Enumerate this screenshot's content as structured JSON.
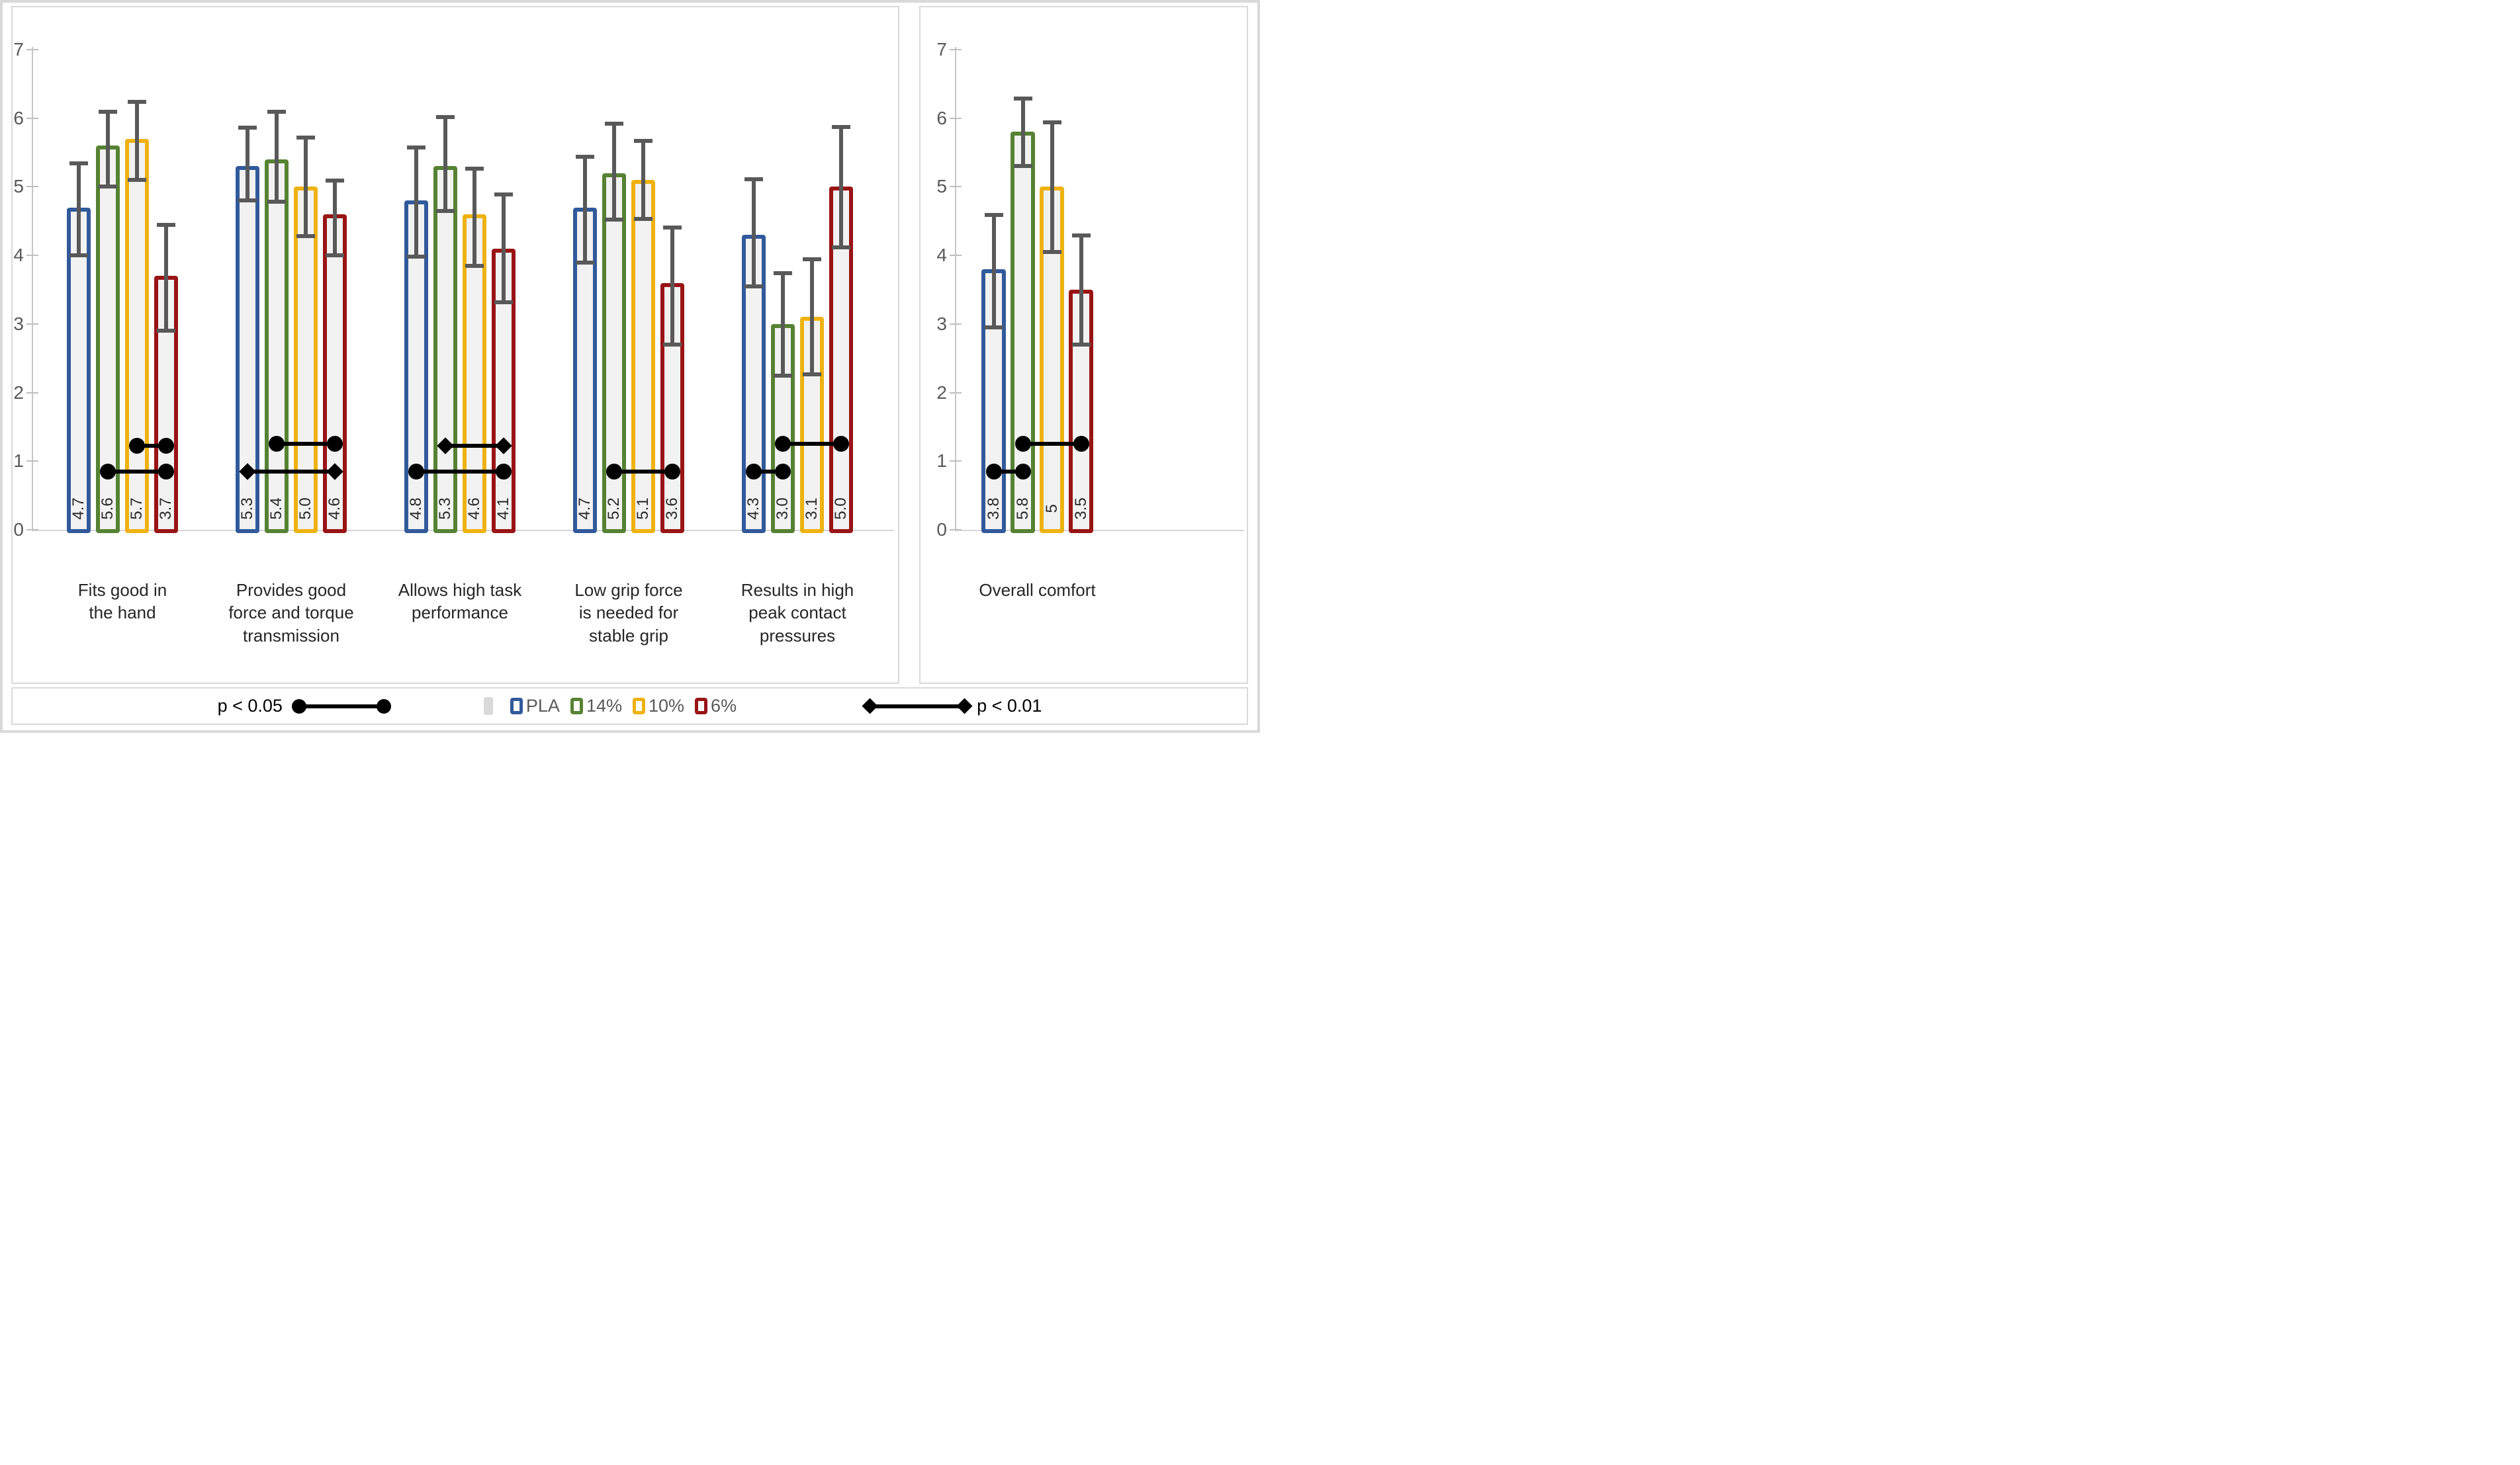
{
  "colors": {
    "bar_fill": "#F2F2F2",
    "error_bar": "#595959",
    "axis": "#BFBFBF",
    "tick_label": "#595959",
    "panel_border": "#D9D9D9",
    "significance": "#000000",
    "pla_blue": "#315A9B",
    "green_14": "#568233",
    "yellow_10": "#EEB211",
    "red_6": "#991415"
  },
  "legend": {
    "p05_label": "p < 0.05",
    "p01_label": "p < 0.01",
    "entries": [
      {
        "label": "PLA",
        "color": "#315A9B"
      },
      {
        "label": "14%",
        "color": "#568233"
      },
      {
        "label": "10%",
        "color": "#EEB211"
      },
      {
        "label": "6%",
        "color": "#991415"
      }
    ]
  },
  "chart_data": [
    {
      "type": "bar",
      "title": "",
      "xlabel": "",
      "ylabel": "",
      "ylim": [
        0,
        7
      ],
      "yticks": [
        0,
        1,
        2,
        3,
        4,
        5,
        6,
        7
      ],
      "grid": false,
      "legend_position": "bottom",
      "categories": [
        "Fits good in\nthe hand",
        "Provides good\nforce and torque\ntransmission",
        "Allows high  task\nperformance",
        "Low grip force\nis needed for\nstable grip",
        "Results in high\npeak contact\npressures"
      ],
      "series": [
        {
          "name": "PLA",
          "color": "#315A9B",
          "values": [
            4.7,
            5.3,
            4.8,
            4.7,
            4.3
          ],
          "ci": [
            [
              4.0,
              5.35
            ],
            [
              4.8,
              5.87
            ],
            [
              3.98,
              5.58
            ],
            [
              3.9,
              5.45
            ],
            [
              3.55,
              5.12
            ]
          ]
        },
        {
          "name": "14%",
          "color": "#568233",
          "values": [
            5.6,
            5.4,
            5.3,
            5.2,
            3.0
          ],
          "ci": [
            [
              5.0,
              6.1
            ],
            [
              4.78,
              6.1
            ],
            [
              4.65,
              6.03
            ],
            [
              4.52,
              5.93
            ],
            [
              2.25,
              3.75
            ]
          ]
        },
        {
          "name": "10%",
          "color": "#EEB211",
          "values": [
            5.7,
            5.0,
            4.6,
            5.1,
            3.1
          ],
          "ci": [
            [
              5.1,
              6.25
            ],
            [
              4.28,
              5.73
            ],
            [
              3.85,
              5.27
            ],
            [
              4.53,
              5.68
            ],
            [
              2.27,
              3.95
            ]
          ]
        },
        {
          "name": "6%",
          "color": "#991415",
          "values": [
            3.7,
            4.6,
            4.1,
            3.6,
            5.0
          ],
          "ci": [
            [
              2.9,
              4.45
            ],
            [
              4.0,
              5.1
            ],
            [
              3.32,
              4.9
            ],
            [
              2.7,
              4.42
            ],
            [
              4.12,
              5.88
            ]
          ]
        }
      ],
      "value_labels": [
        [
          "4.7",
          "5.6",
          "5.7",
          "3.7"
        ],
        [
          "5.3",
          "5.4",
          "5.0",
          "4.6"
        ],
        [
          "4.8",
          "5.3",
          "4.6",
          "4.1"
        ],
        [
          "4.7",
          "5.2",
          "5.1",
          "3.6"
        ],
        [
          "4.3",
          "3.0",
          "3.1",
          "5.0"
        ]
      ],
      "significance": [
        {
          "category": 0,
          "y": 1.22,
          "from": 2,
          "to": 3,
          "ends": "dot"
        },
        {
          "category": 0,
          "y": 0.85,
          "from": 1,
          "to": 3,
          "ends": "dot"
        },
        {
          "category": 1,
          "y": 1.25,
          "from": 1,
          "to": 3,
          "ends": "dot"
        },
        {
          "category": 1,
          "y": 0.85,
          "from": 0,
          "to": 3,
          "ends": "diamond"
        },
        {
          "category": 2,
          "y": 1.22,
          "from": 1,
          "to": 3,
          "ends": "diamond"
        },
        {
          "category": 2,
          "y": 0.85,
          "from": 0,
          "to": 3,
          "ends": "dot"
        },
        {
          "category": 3,
          "y": 0.85,
          "from": 1,
          "to": 3,
          "ends": "dot"
        },
        {
          "category": 4,
          "y": 1.25,
          "from": 1,
          "to": 3,
          "ends": "dot"
        },
        {
          "category": 4,
          "y": 0.85,
          "from": 0,
          "to": 1,
          "ends": "dot"
        }
      ]
    },
    {
      "type": "bar",
      "title": "",
      "xlabel": "",
      "ylabel": "",
      "ylim": [
        0,
        7
      ],
      "yticks": [
        0,
        1,
        2,
        3,
        4,
        5,
        6,
        7
      ],
      "grid": false,
      "categories": [
        "Overall comfort"
      ],
      "series": [
        {
          "name": "PLA",
          "color": "#315A9B",
          "values": [
            3.8
          ],
          "ci": [
            [
              2.95,
              4.6
            ]
          ]
        },
        {
          "name": "14%",
          "color": "#568233",
          "values": [
            5.8
          ],
          "ci": [
            [
              5.3,
              6.3
            ]
          ]
        },
        {
          "name": "10%",
          "color": "#EEB211",
          "values": [
            5.0
          ],
          "ci": [
            [
              4.05,
              5.95
            ]
          ]
        },
        {
          "name": "6%",
          "color": "#991415",
          "values": [
            3.5
          ],
          "ci": [
            [
              2.7,
              4.3
            ]
          ]
        }
      ],
      "value_labels": [
        [
          "3.8",
          "5.8",
          "5",
          "3.5"
        ]
      ],
      "significance": [
        {
          "category": 0,
          "y": 1.25,
          "from": 1,
          "to": 3,
          "ends": "dot"
        },
        {
          "category": 0,
          "y": 0.85,
          "from": 0,
          "to": 1,
          "ends": "dot"
        }
      ]
    }
  ]
}
